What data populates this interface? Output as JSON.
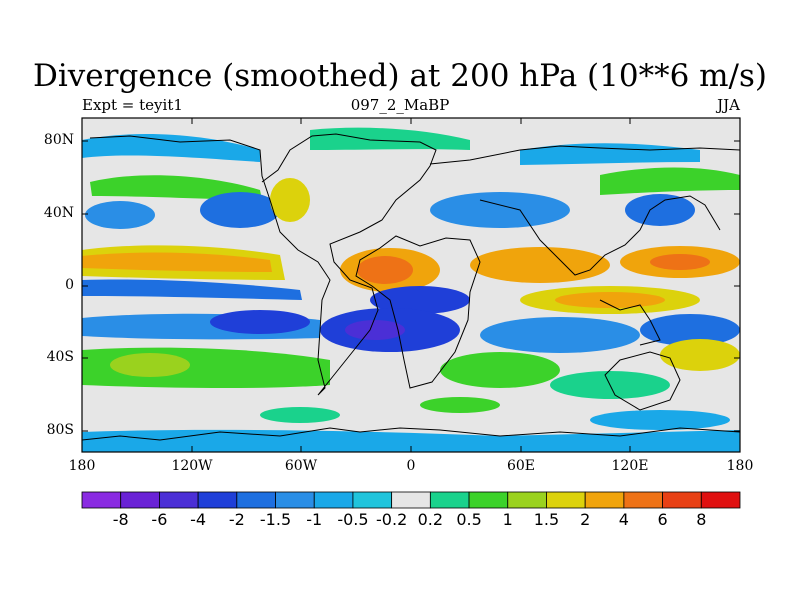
{
  "title": "Divergence (smoothed) at 200 hPa (10**6 m/s)",
  "subtitle_left": "Expt = teyit1",
  "subtitle_center": "097_2_MaBP",
  "subtitle_right": "JJA",
  "y_ticks": [
    "80N",
    "40N",
    "0",
    "40S",
    "80S"
  ],
  "x_ticks": [
    "180",
    "120W",
    "60W",
    "0",
    "60E",
    "120E",
    "180"
  ],
  "colorbar": {
    "labels": [
      "-8",
      "-6",
      "-4",
      "-2",
      "-1.5",
      "-1",
      "-0.5",
      "-0.2",
      "0.2",
      "0.5",
      "1",
      "1.5",
      "2",
      "4",
      "6",
      "8"
    ],
    "colors": [
      "#8a2be2",
      "#6a22d6",
      "#4b2fd6",
      "#1f3fd8",
      "#1e6fe0",
      "#2a8ee6",
      "#1aa8e8",
      "#20c4dc",
      "#e6e6e6",
      "#1ad28c",
      "#3cd22a",
      "#9ad21e",
      "#dcd20c",
      "#f0a40c",
      "#ee7216",
      "#e84014",
      "#e01010"
    ]
  },
  "chart_data": {
    "type": "heatmap",
    "title": "Divergence (smoothed) at 200 hPa (10**6 m/s)",
    "variable": "Divergence at 200 hPa",
    "units": "10**6 m/s",
    "season": "JJA",
    "experiment": "teyit1",
    "xlim": [
      -180,
      180
    ],
    "ylim": [
      -90,
      90
    ],
    "levels": [
      -8,
      -6,
      -4,
      -2,
      -1.5,
      -1,
      -0.5,
      -0.2,
      0.2,
      0.5,
      1,
      1.5,
      2,
      4,
      6,
      8
    ]
  }
}
